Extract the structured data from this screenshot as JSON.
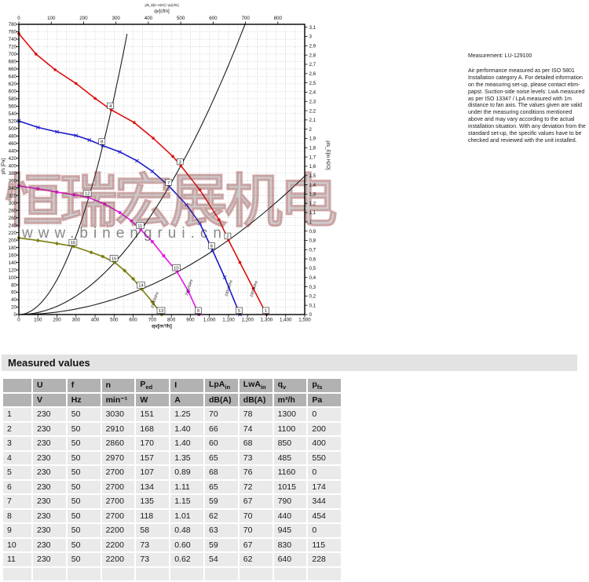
{
  "chart_data": {
    "type": "line",
    "small_title": "pfs_E[in H2O] / qv[cfm]",
    "axes": {
      "top": {
        "title": "qv[cfm]",
        "min": 0,
        "max": 800,
        "step": 100,
        "ticks": [
          "0",
          "100",
          "200",
          "300",
          "400",
          "500",
          "600",
          "700",
          "800"
        ],
        "cfm_to_m3h": 1.699
      },
      "bottom": {
        "title": "qv[m³/h]",
        "min": 0,
        "max": 1500,
        "step": 100,
        "ticks": [
          "0",
          "100",
          "200",
          "300",
          "400",
          "500",
          "600",
          "700",
          "800",
          "900",
          "1,000",
          "1,100",
          "1,200",
          "1,300",
          "1,400",
          "1,500"
        ]
      },
      "left": {
        "title": "pfs [Pa]",
        "min": 0,
        "max": 780,
        "step": 20,
        "ticks": [
          "780",
          "760",
          "740",
          "720",
          "700",
          "680",
          "660",
          "640",
          "620",
          "600",
          "580",
          "560",
          "540",
          "520",
          "500",
          "480",
          "460",
          "440",
          "420",
          "400",
          "380",
          "360",
          "340",
          "320",
          "300",
          "280",
          "260",
          "240",
          "220",
          "200",
          "180",
          "160",
          "140",
          "120",
          "100",
          "80",
          "60",
          "40",
          "20",
          "0"
        ]
      },
      "right": {
        "title": "pfs_E[in H2O]",
        "min": 0,
        "max": 3.1,
        "step": 0.1,
        "pa_per_unit": 249.08,
        "ticks": [
          "3,1",
          "3",
          "2,9",
          "2,8",
          "2,7",
          "2,6",
          "2,5",
          "2,4",
          "2,3",
          "2,2",
          "2,1",
          "2",
          "1,9",
          "1,8",
          "1,7",
          "1,6",
          "1,5",
          "1,4",
          "1,3",
          "1,2",
          "1,1",
          "1",
          "0,9",
          "0,8",
          "0,7",
          "0,6",
          "0,5",
          "0,4",
          "0,3",
          "0,2",
          "0,1",
          "0"
        ]
      }
    },
    "grid": {
      "x_step": 50,
      "y_step": 20,
      "color": "#9a9a9a"
    },
    "series": [
      {
        "name": "curve-3000rpm",
        "color": "#de0f0f",
        "marker": "circle",
        "end_label": "230V50Hz",
        "end_label_pos": {
          "q": 1222,
          "p": 68
        },
        "points": [
          [
            0,
            755
          ],
          [
            90,
            700
          ],
          [
            190,
            658
          ],
          [
            300,
            621
          ],
          [
            400,
            581
          ],
          [
            485,
            550
          ],
          [
            605,
            516
          ],
          [
            705,
            474
          ],
          [
            808,
            425
          ],
          [
            850,
            400
          ],
          [
            950,
            335
          ],
          [
            1050,
            255
          ],
          [
            1100,
            200
          ],
          [
            1160,
            140
          ],
          [
            1230,
            70
          ],
          [
            1300,
            0
          ]
        ],
        "numbered_points": [
          {
            "n": "4",
            "q": 485,
            "p": 550
          },
          {
            "n": "3",
            "q": 850,
            "p": 400
          },
          {
            "n": "2",
            "q": 1100,
            "p": 200
          },
          {
            "n": "1",
            "q": 1300,
            "p": 0
          }
        ]
      },
      {
        "name": "curve-2700rpm",
        "color": "#1a1acd",
        "marker": "x",
        "end_label": "230V50Hz",
        "end_label_pos": {
          "q": 1090,
          "p": 70
        },
        "points": [
          [
            0,
            520
          ],
          [
            100,
            503
          ],
          [
            200,
            491
          ],
          [
            300,
            481
          ],
          [
            370,
            469
          ],
          [
            440,
            454
          ],
          [
            530,
            437
          ],
          [
            620,
            413
          ],
          [
            700,
            385
          ],
          [
            790,
            344
          ],
          [
            880,
            295
          ],
          [
            950,
            245
          ],
          [
            1015,
            174
          ],
          [
            1080,
            100
          ],
          [
            1160,
            0
          ]
        ],
        "numbered_points": [
          {
            "n": "8",
            "q": 440,
            "p": 454
          },
          {
            "n": "7",
            "q": 790,
            "p": 344
          },
          {
            "n": "6",
            "q": 1015,
            "p": 174
          },
          {
            "n": "5",
            "q": 1160,
            "p": 0
          }
        ]
      },
      {
        "name": "curve-2200rpm",
        "color": "#e512e5",
        "marker": "square",
        "end_label": "230V50Hz",
        "end_label_pos": {
          "q": 882,
          "p": 72
        },
        "points": [
          [
            0,
            346
          ],
          [
            100,
            338
          ],
          [
            200,
            329
          ],
          [
            290,
            322
          ],
          [
            363,
            315
          ],
          [
            450,
            297
          ],
          [
            530,
            274
          ],
          [
            590,
            252
          ],
          [
            640,
            228
          ],
          [
            700,
            196
          ],
          [
            760,
            158
          ],
          [
            830,
            115
          ],
          [
            890,
            62
          ],
          [
            945,
            0
          ]
        ],
        "numbered_points": [
          {
            "n": "12",
            "q": 363,
            "p": 315
          },
          {
            "n": "11",
            "q": 640,
            "p": 228
          },
          {
            "n": "10",
            "q": 830,
            "p": 115
          },
          {
            "n": "9",
            "q": 945,
            "p": 0
          }
        ]
      },
      {
        "name": "curve-low-speed",
        "color": "#7d7d12",
        "marker": "diamond",
        "end_label": "230V50Hz",
        "end_label_pos": {
          "q": 702,
          "p": 38
        },
        "points": [
          [
            0,
            206
          ],
          [
            100,
            199
          ],
          [
            200,
            191
          ],
          [
            288,
            183
          ],
          [
            380,
            167
          ],
          [
            440,
            156
          ],
          [
            503,
            140
          ],
          [
            555,
            118
          ],
          [
            600,
            96
          ],
          [
            645,
            68
          ],
          [
            700,
            34
          ],
          [
            750,
            0
          ]
        ],
        "numbered_points": [
          {
            "n": "16",
            "q": 288,
            "p": 183
          },
          {
            "n": "15",
            "q": 503,
            "p": 140
          },
          {
            "n": "14",
            "q": 645,
            "p": 68
          },
          {
            "n": "13",
            "q": 750,
            "p": 0
          }
        ]
      }
    ],
    "system_curves": [
      {
        "name": "system-curve-steep",
        "k": 0.002338
      },
      {
        "name": "system-curve-middle",
        "k": 0.0005536
      },
      {
        "name": "system-curve-shallow",
        "k": 0.0001653
      }
    ],
    "watermark": {
      "cn": "恒瑞宏展机电",
      "url": "www.binengrui.cn"
    }
  },
  "note": {
    "measurement": "Measurement: LU-129100",
    "body": "Air performance measured as per ISO 5801 Installation category A. For detailed information on the measuring set-up, please contact ebm-papst. Suction-side noise levels: LwA measured as per ISO 13347 / LpA measured with 1m distance to fan axis. The values given are valid under the measuring conditions mentioned above and may vary according to the actual installation situation. With any deviation from the standard set-up, the specific values have to be checked and reviewed with the unit installed."
  },
  "table": {
    "title": "Measured values",
    "columns": [
      {
        "sym": "",
        "sub": "",
        "unit": ""
      },
      {
        "sym": "U",
        "sub": "",
        "unit": "V"
      },
      {
        "sym": "f",
        "sub": "",
        "unit": "Hz"
      },
      {
        "sym": "n",
        "sub": "",
        "unit": "min⁻¹"
      },
      {
        "sym": "P",
        "sub": "ed",
        "unit": "W"
      },
      {
        "sym": "I",
        "sub": "",
        "unit": "A"
      },
      {
        "sym": "LpA",
        "sub": "in",
        "unit": "dB(A)"
      },
      {
        "sym": "LwA",
        "sub": "in",
        "unit": "dB(A)"
      },
      {
        "sym": "q",
        "sub": "v",
        "unit": "m³/h"
      },
      {
        "sym": "p",
        "sub": "fs",
        "unit": "Pa"
      }
    ],
    "rows": [
      [
        "1",
        "230",
        "50",
        "3030",
        "151",
        "1.25",
        "70",
        "78",
        "1300",
        "0"
      ],
      [
        "2",
        "230",
        "50",
        "2910",
        "168",
        "1.40",
        "66",
        "74",
        "1100",
        "200"
      ],
      [
        "3",
        "230",
        "50",
        "2860",
        "170",
        "1.40",
        "60",
        "68",
        "850",
        "400"
      ],
      [
        "4",
        "230",
        "50",
        "2970",
        "157",
        "1.35",
        "65",
        "73",
        "485",
        "550"
      ],
      [
        "5",
        "230",
        "50",
        "2700",
        "107",
        "0.89",
        "68",
        "76",
        "1160",
        "0"
      ],
      [
        "6",
        "230",
        "50",
        "2700",
        "134",
        "1.11",
        "65",
        "72",
        "1015",
        "174"
      ],
      [
        "7",
        "230",
        "50",
        "2700",
        "135",
        "1.15",
        "59",
        "67",
        "790",
        "344"
      ],
      [
        "8",
        "230",
        "50",
        "2700",
        "118",
        "1.01",
        "62",
        "70",
        "440",
        "454"
      ],
      [
        "9",
        "230",
        "50",
        "2200",
        "58",
        "0.48",
        "63",
        "70",
        "945",
        "0"
      ],
      [
        "10",
        "230",
        "50",
        "2200",
        "73",
        "0.60",
        "59",
        "67",
        "830",
        "115"
      ],
      [
        "11",
        "230",
        "50",
        "2200",
        "73",
        "0.62",
        "54",
        "62",
        "640",
        "228"
      ]
    ]
  }
}
